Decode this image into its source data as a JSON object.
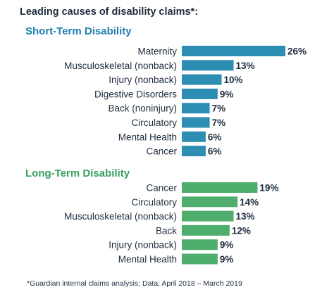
{
  "title": "Leading causes of disability claims*:",
  "footnote": "*Guardian internal claims analysis; Data: April 2018 – March 2019",
  "colors": {
    "short_term": "#2e8db3",
    "long_term": "#4fae6e",
    "short_term_heading": "#1f7fb0",
    "long_term_heading": "#3a9e5e"
  },
  "chart_data": [
    {
      "type": "bar",
      "title": "Short-Term Disability",
      "categories": [
        "Maternity",
        "Musculoskeletal (nonback)",
        "Injury (nonback)",
        "Digestive Disorders",
        "Back (noninjury)",
        "Circulatory",
        "Mental Health",
        "Cancer"
      ],
      "values": [
        26,
        13,
        10,
        9,
        7,
        7,
        6,
        6
      ],
      "value_labels": [
        "26%",
        "13%",
        "10%",
        "9%",
        "7%",
        "7%",
        "6%",
        "6%"
      ],
      "unit": "%",
      "orientation": "horizontal",
      "grid": false
    },
    {
      "type": "bar",
      "title": "Long-Term Disability",
      "categories": [
        "Cancer",
        "Circulatory",
        "Musculoskeletal (nonback)",
        "Back",
        "Injury (nonback)",
        "Mental Health"
      ],
      "values": [
        19,
        14,
        13,
        12,
        9,
        9
      ],
      "value_labels": [
        "19%",
        "14%",
        "13%",
        "12%",
        "9%",
        "9%"
      ],
      "unit": "%",
      "orientation": "horizontal",
      "grid": false
    }
  ]
}
